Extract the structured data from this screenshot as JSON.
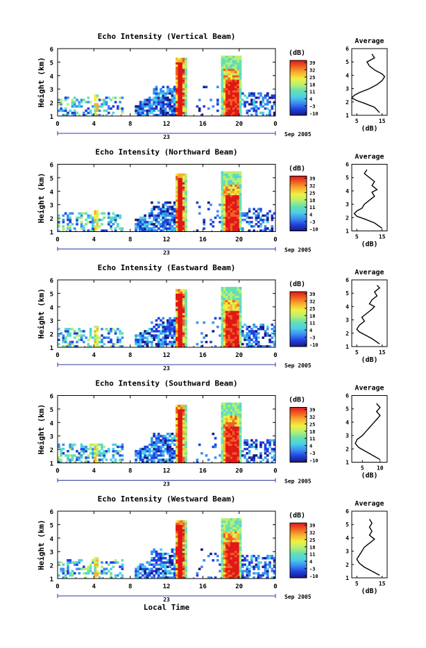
{
  "figure": {
    "xlabel": "Local Time",
    "x_ticks": [
      "0",
      "4",
      "8",
      "12",
      "16",
      "20",
      "0"
    ],
    "date_day": "23",
    "date_label": "Sep 2005",
    "colorbar_unit": "(dB)",
    "colorbar_ticks": [
      "39",
      "32",
      "25",
      "18",
      "11",
      "4",
      "-3",
      "-10"
    ],
    "y_ticks": [
      "1",
      "2",
      "3",
      "4",
      "5",
      "6"
    ],
    "ylabel": "Height (km)",
    "avg_title": "Average",
    "avg_xlabel": "(dB)",
    "colors": {
      "scale": [
        "#1a1a80",
        "#2040e0",
        "#3a8ef0",
        "#4cd0e8",
        "#66e0b0",
        "#b8f070",
        "#f0f040",
        "#f8b030",
        "#f06020",
        "#e01818"
      ]
    }
  },
  "chart_data": [
    {
      "type": "heatmap",
      "title": "Echo Intensity (Vertical Beam)",
      "xlim": [
        0,
        24
      ],
      "ylim": [
        1,
        6
      ],
      "clim": [
        -10,
        39
      ],
      "avg_ticks": [
        "5",
        "15"
      ],
      "avg_xlim": [
        3,
        17
      ],
      "average_profile": [
        [
          1.2,
          14
        ],
        [
          1.6,
          12
        ],
        [
          1.9,
          8
        ],
        [
          2.1,
          5
        ],
        [
          2.3,
          3
        ],
        [
          2.5,
          4
        ],
        [
          2.7,
          6
        ],
        [
          3.0,
          10
        ],
        [
          3.3,
          13
        ],
        [
          3.6,
          15
        ],
        [
          3.9,
          16
        ],
        [
          4.1,
          15
        ],
        [
          4.4,
          12
        ],
        [
          4.7,
          10
        ],
        [
          5.0,
          9
        ],
        [
          5.3,
          12
        ],
        [
          5.6,
          11
        ]
      ]
    },
    {
      "type": "heatmap",
      "title": "Echo Intensity (Northward Beam)",
      "xlim": [
        0,
        24
      ],
      "ylim": [
        1,
        6
      ],
      "clim": [
        -10,
        39
      ],
      "avg_ticks": [
        "5",
        "15"
      ],
      "avg_xlim": [
        3,
        17
      ],
      "average_profile": [
        [
          1.2,
          15
        ],
        [
          1.6,
          12
        ],
        [
          1.9,
          8
        ],
        [
          2.1,
          5
        ],
        [
          2.3,
          4
        ],
        [
          2.5,
          5
        ],
        [
          2.7,
          7
        ],
        [
          3.0,
          8
        ],
        [
          3.3,
          10
        ],
        [
          3.6,
          12
        ],
        [
          3.9,
          11
        ],
        [
          4.1,
          13
        ],
        [
          4.4,
          11
        ],
        [
          4.7,
          12
        ],
        [
          5.0,
          10
        ],
        [
          5.3,
          8
        ],
        [
          5.6,
          9
        ]
      ]
    },
    {
      "type": "heatmap",
      "title": "Echo Intensity (Eastward Beam)",
      "xlim": [
        0,
        24
      ],
      "ylim": [
        1,
        6
      ],
      "clim": [
        -10,
        39
      ],
      "avg_ticks": [
        "5",
        "15"
      ],
      "avg_xlim": [
        3,
        17
      ],
      "average_profile": [
        [
          1.2,
          14
        ],
        [
          1.6,
          11
        ],
        [
          1.9,
          8
        ],
        [
          2.1,
          6
        ],
        [
          2.3,
          5
        ],
        [
          2.6,
          6
        ],
        [
          2.9,
          8
        ],
        [
          3.2,
          7
        ],
        [
          3.5,
          9
        ],
        [
          3.8,
          11
        ],
        [
          4.0,
          12
        ],
        [
          4.2,
          10
        ],
        [
          4.5,
          11
        ],
        [
          4.8,
          13
        ],
        [
          5.1,
          12
        ],
        [
          5.4,
          14
        ],
        [
          5.6,
          13
        ]
      ]
    },
    {
      "type": "heatmap",
      "title": "Echo Intensity (Southward Beam)",
      "xlim": [
        0,
        24
      ],
      "ylim": [
        1,
        6
      ],
      "clim": [
        -10,
        39
      ],
      "avg_ticks": [
        "5",
        "10"
      ],
      "avg_xlim": [
        2,
        12
      ],
      "average_profile": [
        [
          1.2,
          10
        ],
        [
          1.5,
          8
        ],
        [
          1.8,
          6
        ],
        [
          2.1,
          4
        ],
        [
          2.4,
          3
        ],
        [
          2.7,
          3.5
        ],
        [
          3.0,
          5
        ],
        [
          3.3,
          6
        ],
        [
          3.6,
          7
        ],
        [
          3.9,
          8
        ],
        [
          4.2,
          9
        ],
        [
          4.5,
          10
        ],
        [
          4.8,
          9
        ],
        [
          5.1,
          10
        ],
        [
          5.4,
          9
        ]
      ]
    },
    {
      "type": "heatmap",
      "title": "Echo Intensity (Westward Beam)",
      "xlim": [
        0,
        24
      ],
      "ylim": [
        1,
        6
      ],
      "clim": [
        -10,
        39
      ],
      "avg_ticks": [
        "5",
        "15"
      ],
      "avg_xlim": [
        3,
        17
      ],
      "average_profile": [
        [
          1.2,
          14
        ],
        [
          1.5,
          11
        ],
        [
          1.8,
          8
        ],
        [
          2.1,
          6
        ],
        [
          2.4,
          5
        ],
        [
          2.7,
          6
        ],
        [
          3.0,
          7
        ],
        [
          3.3,
          8
        ],
        [
          3.6,
          10
        ],
        [
          3.9,
          12
        ],
        [
          4.2,
          10
        ],
        [
          4.5,
          11
        ],
        [
          4.8,
          10
        ],
        [
          5.1,
          11
        ],
        [
          5.4,
          10
        ]
      ]
    }
  ]
}
